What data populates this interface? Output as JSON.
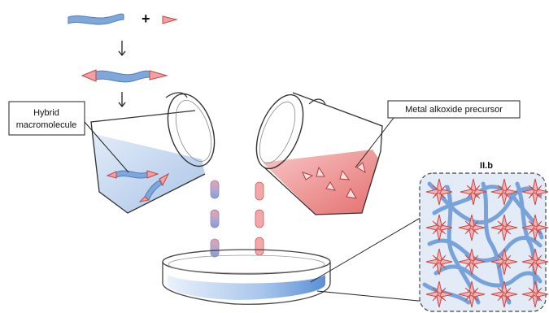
{
  "labels": {
    "hybrid_line1": "Hybrid",
    "hybrid_line2": "macromolecule",
    "precursor": "Metal alkoxide precursor",
    "panel_title": "II.b",
    "plus": "+"
  },
  "colors": {
    "polymer_blue": "#7fa7d9",
    "polymer_blue_dark": "#4f7fbf",
    "alkoxide_red": "#ee8a8a",
    "alkoxide_red_dark": "#c04848",
    "liquid_blue": "#c9dbf2",
    "liquid_red": "#f3a8a8",
    "panel_bg": "#dfe8f5"
  }
}
